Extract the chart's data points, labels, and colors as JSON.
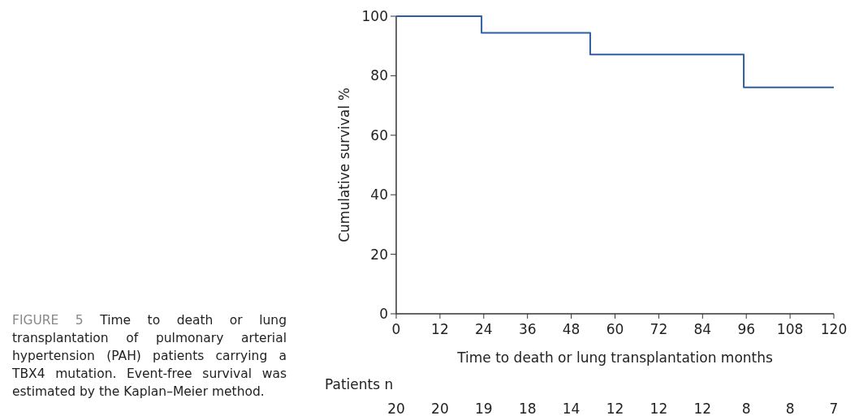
{
  "chart_data": {
    "type": "step",
    "xlabel": "Time to death or lung transplantation months",
    "ylabel": "Cumulative survival %",
    "x": [
      0,
      23.4,
      53.2,
      95.3,
      120
    ],
    "series": [
      {
        "color": "#2e5fa3",
        "values": [
          100,
          94.4,
          87.1,
          76.1,
          76.1
        ]
      }
    ],
    "xlim": [
      0,
      120
    ],
    "xticks": [
      0,
      12,
      24,
      36,
      48,
      60,
      72,
      84,
      96,
      108,
      120
    ],
    "ylim": [
      0,
      100
    ],
    "yticks": [
      0,
      20,
      40,
      60,
      80,
      100
    ],
    "grid": false,
    "marker": "none",
    "annotations": [
      "FIGURE 5 Time to death or lung transplantation of pulmonary arterial hypertension (PAH) patients carrying a TBX4 mutation. Event-free survival was estimated by the Kaplan–Meier method.",
      "Patients n",
      "20",
      "20",
      "19",
      "18",
      "14",
      "12",
      "12",
      "12",
      "8",
      "8",
      "7"
    ]
  }
}
